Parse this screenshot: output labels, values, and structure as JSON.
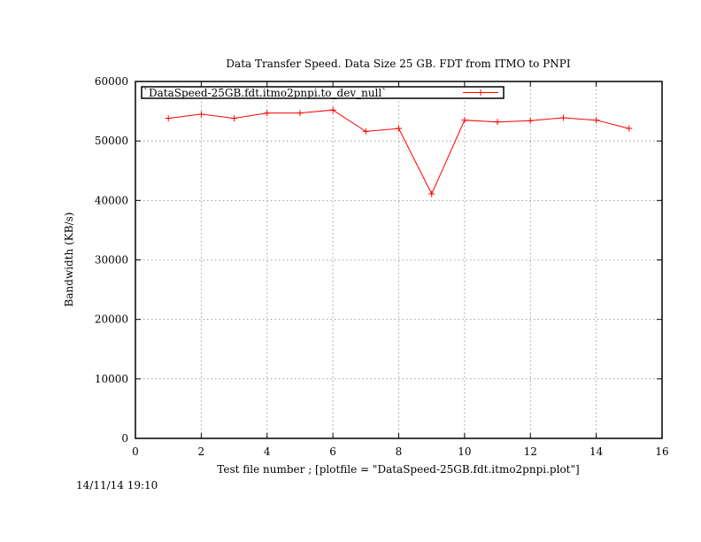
{
  "chart_data": {
    "type": "line",
    "title": "Data Transfer Speed. Data Size 25 GB. FDT from ITMO to PNPI",
    "xlabel": "Test file number ; [plotfile = \"DataSpeed-25GB.fdt.itmo2pnpi.plot\"]",
    "ylabel": "Bandwidth (KB/s)",
    "xlim": [
      0,
      16
    ],
    "ylim": [
      0,
      60000
    ],
    "x_ticks": [
      0,
      2,
      4,
      6,
      8,
      10,
      12,
      14,
      16
    ],
    "y_ticks": [
      0,
      10000,
      20000,
      30000,
      40000,
      50000,
      60000
    ],
    "grid": true,
    "legend_position": "top-left",
    "series": [
      {
        "name": "`DataSpeed-25GB.fdt.itmo2pnpi.to_dev_null`",
        "color": "#ff0000",
        "marker": "plus",
        "x": [
          1,
          2,
          3,
          4,
          5,
          6,
          7,
          8,
          9,
          10,
          11,
          12,
          13,
          14,
          15
        ],
        "y": [
          53800,
          54500,
          53800,
          54700,
          54700,
          55200,
          51600,
          52100,
          41100,
          53500,
          53200,
          53400,
          53900,
          53500,
          52100
        ]
      }
    ]
  },
  "footer": {
    "timestamp": "14/11/14 19:10"
  }
}
